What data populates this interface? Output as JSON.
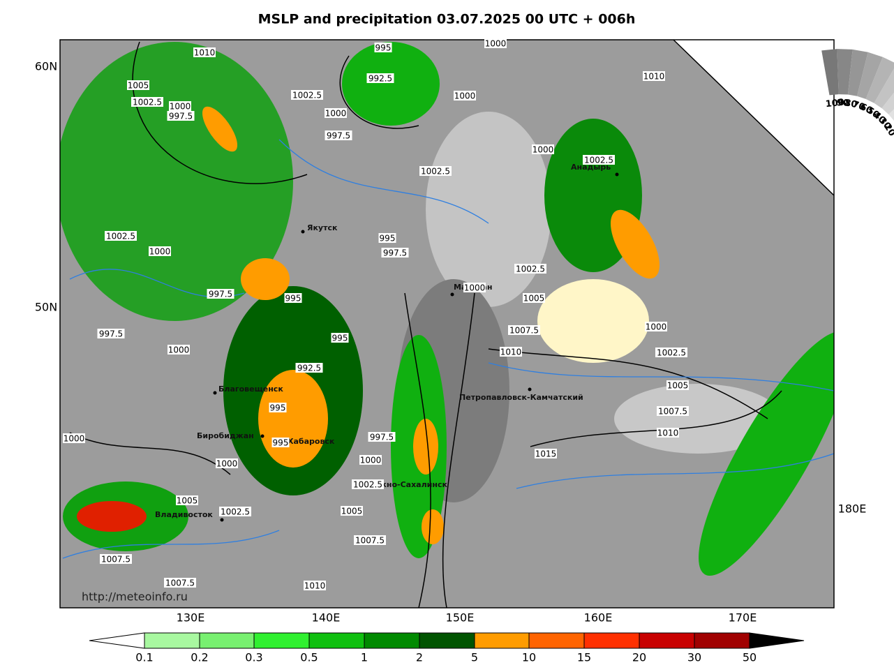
{
  "title": "MSLP and precipitation 03.07.2025 00 UTC + 006h",
  "lat_labels": [
    "60N",
    "50N"
  ],
  "lon_labels": [
    "130E",
    "140E",
    "150E",
    "160E",
    "170E",
    "180E"
  ],
  "cities": [
    "Якутск",
    "Магадан",
    "Анадырь",
    "Благовещенск",
    "Биробиджан",
    "Хабаровск",
    "Петропавловск-Камчатский",
    "Южно-Сахалинск",
    "Владивосток"
  ],
  "isobar_labels": [
    "1010",
    "995",
    "1000",
    "1005",
    "1002.5",
    "1000",
    "997.5",
    "992.5",
    "1002.5",
    "1000",
    "1000",
    "1010",
    "997.5",
    "1002.5",
    "1000",
    "1002.5",
    "1002.5",
    "1000",
    "995",
    "997.5",
    "1002.5",
    "997.5",
    "995",
    "1000",
    "1005",
    "997.5",
    "995",
    "1007.5",
    "1000",
    "1000",
    "992.5",
    "1010",
    "1002.5",
    "1005",
    "995",
    "1007.5",
    "1000",
    "997.5",
    "995",
    "1010",
    "1000",
    "1000",
    "1015",
    "1002.5",
    "1005",
    "1002.5",
    "1005",
    "1007.5",
    "1007.5",
    "1007.5",
    "1010"
  ],
  "precip_legend": [
    "0.1",
    "0.2",
    "0.3",
    "0.5",
    "1",
    "2",
    "5",
    "10",
    "15",
    "20",
    "30",
    "50"
  ],
  "cloud_legend": [
    "100",
    "90",
    "80",
    "70",
    "60",
    "50",
    "40",
    "30",
    "20"
  ],
  "source": "http://meteoinfo.ru"
}
